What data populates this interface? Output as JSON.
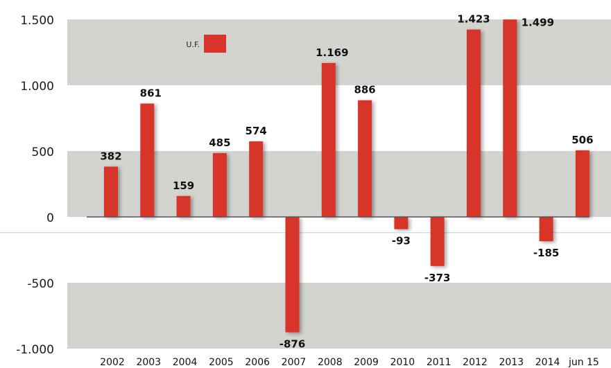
{
  "chart_data": {
    "type": "bar",
    "categories": [
      "2002",
      "2003",
      "2004",
      "2005",
      "2006",
      "2007",
      "2008",
      "2009",
      "2010",
      "2011",
      "2012",
      "2013",
      "2014",
      "jun 15"
    ],
    "series": [
      {
        "name": "U.F.",
        "values": [
          382,
          861,
          159,
          485,
          574,
          -876,
          1169,
          886,
          -93,
          -373,
          1423,
          1499,
          -185,
          506
        ],
        "labels": [
          "382",
          "861",
          "159",
          "485",
          "574",
          "-876",
          "1.169",
          "886",
          "-93",
          "-373",
          "1.423",
          "1.499",
          "-185",
          "506"
        ],
        "color": "#d7342b"
      }
    ],
    "yticks": [
      1500,
      1000,
      500,
      0,
      -500,
      -1000
    ],
    "ytick_labels": [
      "1.500",
      "1.000",
      "500",
      "0",
      "-500",
      "-1.000"
    ],
    "ylim": [
      -1000,
      1500
    ],
    "legend": {
      "label": "U.F.",
      "position": "top-left"
    },
    "grid": "alternating horizontal bands",
    "colors": {
      "bar": "#d7342b",
      "band": "#d3d4cf",
      "zero_line": "#555555",
      "guide_line": "#a8dde0"
    }
  }
}
